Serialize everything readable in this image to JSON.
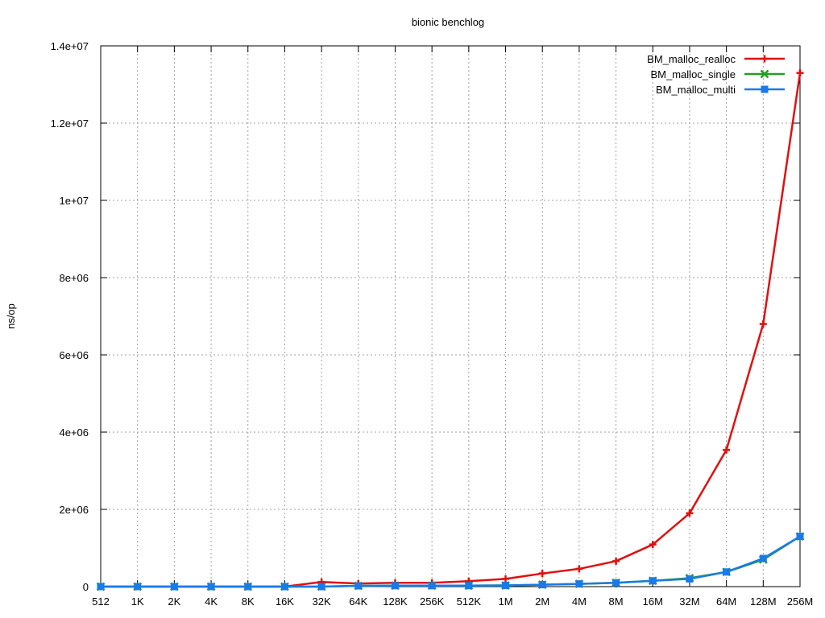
{
  "chart_data": {
    "type": "line",
    "title": "bionic benchlog",
    "xlabel": "",
    "ylabel": "ns/op",
    "categories": [
      "512",
      "1K",
      "2K",
      "4K",
      "8K",
      "16K",
      "32K",
      "64K",
      "128K",
      "256K",
      "512K",
      "1M",
      "2M",
      "4M",
      "8M",
      "16M",
      "32M",
      "64M",
      "128M",
      "256M"
    ],
    "ylim": [
      0,
      14000000
    ],
    "yticks": [
      0,
      2000000,
      4000000,
      6000000,
      8000000,
      10000000,
      12000000,
      14000000
    ],
    "ytick_labels": [
      "0",
      "2e+06",
      "4e+06",
      "6e+06",
      "8e+06",
      "1e+07",
      "1.2e+07",
      "1.4e+07"
    ],
    "grid": true,
    "legend_position": "top-right",
    "series": [
      {
        "name": "BM_malloc_realloc",
        "color": "#e01010",
        "marker": "plus",
        "values": [
          0,
          0,
          0,
          0,
          0,
          0,
          120000,
          80000,
          100000,
          100000,
          140000,
          200000,
          340000,
          460000,
          660000,
          1090000,
          1900000,
          3540000,
          6800000,
          13300000
        ]
      },
      {
        "name": "BM_malloc_single",
        "color": "#20a020",
        "marker": "cross",
        "values": [
          0,
          0,
          0,
          0,
          0,
          0,
          0,
          20000,
          25000,
          25000,
          25000,
          30000,
          50000,
          70000,
          100000,
          150000,
          220000,
          380000,
          700000,
          1300000
        ]
      },
      {
        "name": "BM_malloc_multi",
        "color": "#1a7ae8",
        "marker": "square",
        "values": [
          0,
          0,
          0,
          0,
          0,
          0,
          0,
          20000,
          25000,
          25000,
          25000,
          30000,
          50000,
          70000,
          100000,
          150000,
          200000,
          380000,
          730000,
          1300000
        ]
      }
    ]
  }
}
